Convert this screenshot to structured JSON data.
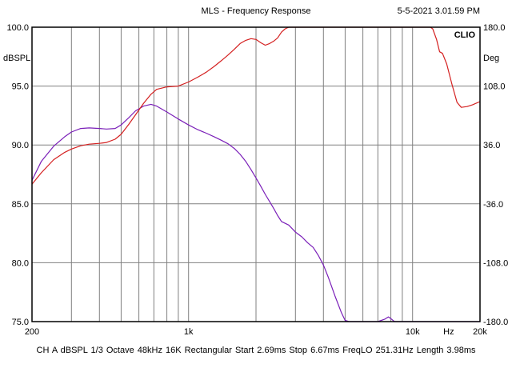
{
  "header": {
    "title": "MLS - Frequency Response",
    "timestamp": "5-5-2021 3.01.59 PM"
  },
  "footer": {
    "text": "CH A   dBSPL   1/3 Octave   48kHz   16K   Rectangular   Start 2.69ms   Stop 6.67ms   FreqLO 251.31Hz   Length 3.98ms"
  },
  "chart_data": {
    "type": "line",
    "brand": "CLIO",
    "x_scale": "log",
    "xlim": [
      200,
      20000
    ],
    "x_ticks": [
      {
        "value": 200,
        "label": "200"
      },
      {
        "value": 1000,
        "label": "1k"
      },
      {
        "value": 10000,
        "label": "10k"
      },
      {
        "value": 14500,
        "label": "Hz"
      },
      {
        "value": 20000,
        "label": "20k"
      }
    ],
    "ylabel": "dBSPL",
    "ylim": [
      75,
      100
    ],
    "y_ticks": [
      "100.0",
      "95.0",
      "90.0",
      "85.0",
      "80.0",
      "75.0"
    ],
    "y2label": "Deg",
    "y2lim": [
      -180,
      180
    ],
    "y2_ticks": [
      "180.0",
      "108.0",
      "36.0",
      "-36.0",
      "-108.0",
      "-180.0"
    ],
    "grid": true,
    "colors": {
      "magnitude": "#7a1fb8",
      "phase": "#d42020",
      "grid": "#808080",
      "background": "#ffffff"
    },
    "series": [
      {
        "axis": "left",
        "x": [
          200,
          220,
          250,
          280,
          300,
          330,
          360,
          400,
          430,
          470,
          500,
          540,
          580,
          630,
          680,
          720,
          800,
          900,
          1000,
          1100,
          1200,
          1300,
          1400,
          1500,
          1600,
          1700,
          1800,
          1900,
          2000,
          2100,
          2200,
          2300,
          2400,
          2500,
          2600,
          2800,
          3000,
          3200,
          3400,
          3600,
          3800,
          4000,
          4200,
          4500,
          4800,
          5000,
          5200,
          5500,
          6000,
          7000,
          7500,
          7800,
          8000,
          8300,
          9000,
          10000,
          15000,
          20000
        ],
        "values": [
          87.0,
          88.6,
          89.9,
          90.7,
          91.1,
          91.4,
          91.45,
          91.4,
          91.35,
          91.4,
          91.7,
          92.3,
          92.9,
          93.3,
          93.45,
          93.3,
          92.8,
          92.2,
          91.7,
          91.3,
          91.0,
          90.7,
          90.4,
          90.1,
          89.7,
          89.2,
          88.6,
          87.9,
          87.2,
          86.5,
          85.8,
          85.2,
          84.6,
          84.0,
          83.5,
          83.2,
          82.6,
          82.2,
          81.7,
          81.3,
          80.6,
          79.8,
          78.8,
          77.2,
          75.8,
          75.1,
          75.0,
          75.0,
          75.0,
          75.0,
          75.2,
          75.4,
          75.25,
          75.0,
          75.0,
          75.0,
          75.0,
          75.0
        ]
      },
      {
        "axis": "right",
        "x": [
          200,
          220,
          250,
          280,
          300,
          330,
          360,
          400,
          430,
          470,
          500,
          540,
          580,
          630,
          680,
          720,
          800,
          900,
          1000,
          1100,
          1200,
          1300,
          1400,
          1500,
          1600,
          1700,
          1800,
          1900,
          2000,
          2100,
          2200,
          2300,
          2400,
          2500,
          2600,
          2700,
          2800,
          2900,
          3000,
          3200,
          5000,
          8000,
          10000,
          12000,
          12300,
          12800,
          13200,
          13600,
          14200,
          15000,
          15800,
          16500,
          17500,
          18500,
          20000
        ],
        "values": [
          -12,
          2,
          18,
          27,
          31,
          35,
          37,
          38,
          39,
          43,
          49,
          61,
          73,
          87,
          98,
          104,
          107,
          108,
          113,
          119,
          125,
          132,
          139,
          146,
          153,
          160,
          164,
          166,
          165,
          161,
          158,
          160,
          163,
          167,
          174,
          178,
          180,
          180,
          180,
          180,
          180,
          180,
          180,
          180,
          178,
          165,
          150,
          148,
          135,
          110,
          88,
          82,
          83,
          85,
          89
        ]
      }
    ]
  }
}
